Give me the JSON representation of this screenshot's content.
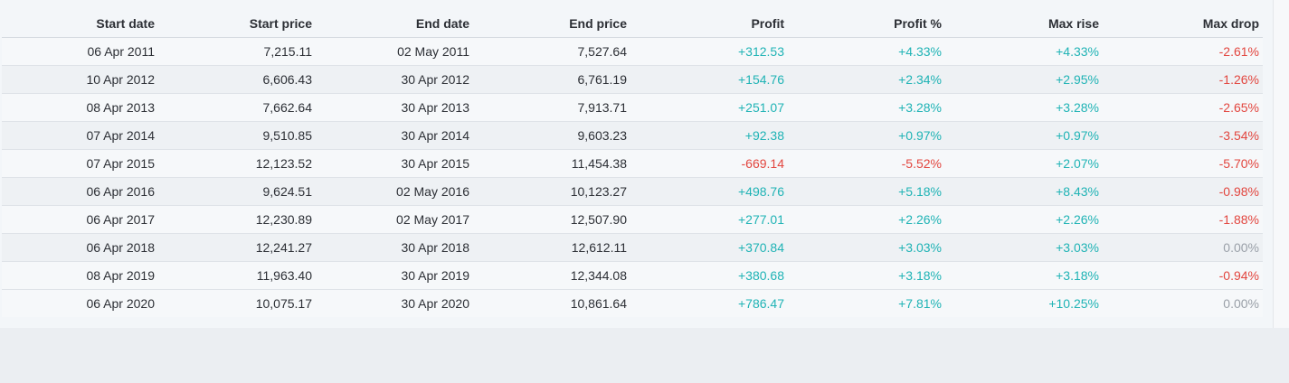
{
  "table": {
    "headers": [
      "Start date",
      "Start price",
      "End date",
      "End price",
      "Profit",
      "Profit %",
      "Max rise",
      "Max drop"
    ],
    "rows": [
      [
        "06 Apr 2011",
        "7,215.11",
        "02 May 2011",
        "7,527.64",
        "+312.53",
        "+4.33%",
        "+4.33%",
        "-2.61%"
      ],
      [
        "10 Apr 2012",
        "6,606.43",
        "30 Apr 2012",
        "6,761.19",
        "+154.76",
        "+2.34%",
        "+2.95%",
        "-1.26%"
      ],
      [
        "08 Apr 2013",
        "7,662.64",
        "30 Apr 2013",
        "7,913.71",
        "+251.07",
        "+3.28%",
        "+3.28%",
        "-2.65%"
      ],
      [
        "07 Apr 2014",
        "9,510.85",
        "30 Apr 2014",
        "9,603.23",
        "+92.38",
        "+0.97%",
        "+0.97%",
        "-3.54%"
      ],
      [
        "07 Apr 2015",
        "12,123.52",
        "30 Apr 2015",
        "11,454.38",
        "-669.14",
        "-5.52%",
        "+2.07%",
        "-5.70%"
      ],
      [
        "06 Apr 2016",
        "9,624.51",
        "02 May 2016",
        "10,123.27",
        "+498.76",
        "+5.18%",
        "+8.43%",
        "-0.98%"
      ],
      [
        "06 Apr 2017",
        "12,230.89",
        "02 May 2017",
        "12,507.90",
        "+277.01",
        "+2.26%",
        "+2.26%",
        "-1.88%"
      ],
      [
        "06 Apr 2018",
        "12,241.27",
        "30 Apr 2018",
        "12,612.11",
        "+370.84",
        "+3.03%",
        "+3.03%",
        "0.00%"
      ],
      [
        "08 Apr 2019",
        "11,963.40",
        "30 Apr 2019",
        "12,344.08",
        "+380.68",
        "+3.18%",
        "+3.18%",
        "-0.94%"
      ],
      [
        "06 Apr 2020",
        "10,075.17",
        "30 Apr 2020",
        "10,861.64",
        "+786.47",
        "+7.81%",
        "+10.25%",
        "0.00%"
      ]
    ]
  },
  "colors": {
    "positive": "#1fb3b5",
    "negative": "#e2463f",
    "neutral": "#9aa0a8"
  }
}
